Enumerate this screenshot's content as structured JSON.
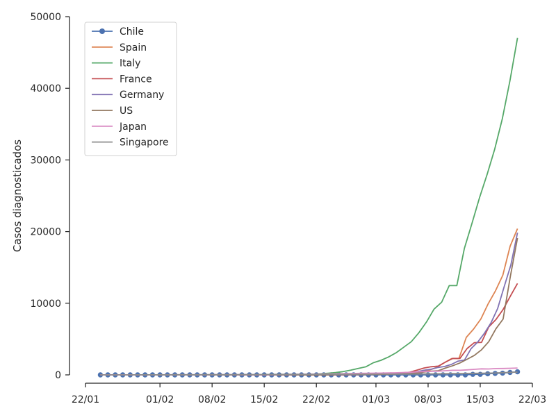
{
  "chart_data": {
    "type": "line",
    "title": "",
    "xlabel": "",
    "ylabel": "Casos diagnosticados",
    "xlim": [
      "2020-01-22",
      "2020-03-22"
    ],
    "ylim": [
      0,
      50000
    ],
    "x_ticks": [
      "2020-01-22",
      "2020-02-01",
      "2020-02-08",
      "2020-02-15",
      "2020-02-22",
      "2020-03-01",
      "2020-03-08",
      "2020-03-15",
      "2020-03-22"
    ],
    "x_tick_labels": [
      "22/01",
      "01/02",
      "08/02",
      "15/02",
      "22/02",
      "01/03",
      "08/03",
      "15/03",
      "22/03"
    ],
    "y_ticks": [
      0,
      10000,
      20000,
      30000,
      40000,
      50000
    ],
    "y_tick_labels": [
      "0",
      "10000",
      "20000",
      "30000",
      "40000",
      "50000"
    ],
    "grid": false,
    "legend": "top-left",
    "x_start": "2020-01-24",
    "x_end": "2020-03-20",
    "series": [
      {
        "name": "Chile",
        "color": "#4c72b0",
        "marker": "circle",
        "values": [
          0,
          0,
          0,
          0,
          0,
          0,
          0,
          0,
          0,
          0,
          0,
          0,
          0,
          0,
          0,
          0,
          0,
          0,
          0,
          0,
          0,
          0,
          0,
          0,
          0,
          0,
          0,
          0,
          0,
          0,
          0,
          0,
          0,
          0,
          0,
          0,
          0,
          0,
          0,
          0,
          0,
          0,
          0,
          0,
          0,
          0,
          0,
          0,
          0,
          0,
          75,
          75,
          155,
          201,
          238,
          342,
          434
        ]
      },
      {
        "name": "Spain",
        "color": "#dd8452",
        "values": [
          0,
          0,
          0,
          0,
          0,
          0,
          0,
          0,
          1,
          1,
          1,
          1,
          1,
          1,
          1,
          1,
          2,
          2,
          2,
          2,
          2,
          2,
          2,
          2,
          2,
          2,
          2,
          2,
          2,
          2,
          2,
          2,
          2,
          6,
          13,
          15,
          32,
          45,
          84,
          120,
          165,
          222,
          259,
          400,
          500,
          673,
          1073,
          1695,
          2277,
          2277,
          5232,
          6391,
          7798,
          9942,
          11748,
          13910,
          17963,
          20410
        ]
      },
      {
        "name": "Italy",
        "color": "#55a868",
        "values": [
          0,
          0,
          0,
          0,
          0,
          0,
          0,
          0,
          2,
          2,
          2,
          2,
          2,
          3,
          3,
          3,
          3,
          3,
          3,
          3,
          3,
          3,
          3,
          3,
          3,
          3,
          3,
          20,
          62,
          155,
          229,
          322,
          453,
          655,
          888,
          1128,
          1694,
          2036,
          2502,
          3089,
          3858,
          4636,
          5883,
          7375,
          9172,
          10149,
          12462,
          12462,
          17660,
          21157,
          24747,
          27980,
          31506,
          35713,
          41035,
          47021
        ]
      },
      {
        "name": "France",
        "color": "#c44e52",
        "values": [
          0,
          0,
          2,
          3,
          3,
          3,
          4,
          5,
          5,
          5,
          6,
          6,
          6,
          6,
          6,
          6,
          6,
          11,
          11,
          11,
          11,
          11,
          11,
          11,
          12,
          12,
          12,
          12,
          12,
          12,
          12,
          12,
          12,
          12,
          12,
          18,
          38,
          57,
          100,
          130,
          191,
          204,
          288,
          380,
          656,
          959,
          1136,
          1219,
          1794,
          2293,
          2293,
          3681,
          4496,
          4532,
          6683,
          7715,
          9124,
          10970,
          12758
        ]
      },
      {
        "name": "Germany",
        "color": "#8172b3",
        "values": [
          0,
          0,
          0,
          0,
          0,
          1,
          4,
          4,
          4,
          5,
          8,
          10,
          12,
          12,
          12,
          12,
          13,
          13,
          14,
          14,
          16,
          16,
          16,
          16,
          16,
          16,
          16,
          16,
          16,
          16,
          16,
          16,
          16,
          16,
          16,
          16,
          16,
          16,
          16,
          17,
          27,
          46,
          48,
          79,
          130,
          159,
          196,
          262,
          482,
          670,
          799,
          1040,
          1176,
          1457,
          1908,
          2078,
          3675,
          4585,
          5795,
          7272,
          9257,
          12327,
          15320,
          19848
        ]
      },
      {
        "name": "US",
        "color": "#937860",
        "values": [
          1,
          1,
          2,
          2,
          5,
          5,
          5,
          5,
          5,
          7,
          8,
          8,
          11,
          11,
          11,
          11,
          11,
          11,
          11,
          11,
          12,
          12,
          13,
          13,
          13,
          13,
          13,
          13,
          13,
          13,
          15,
          15,
          15,
          51,
          51,
          57,
          58,
          60,
          68,
          74,
          98,
          118,
          149,
          217,
          262,
          402,
          518,
          583,
          959,
          1281,
          1663,
          2179,
          2727,
          3499,
          4632,
          6421,
          7786,
          13680,
          19101
        ]
      },
      {
        "name": "Japan",
        "color": "#da8bc3",
        "values": [
          2,
          2,
          2,
          2,
          4,
          4,
          7,
          7,
          11,
          15,
          20,
          20,
          20,
          22,
          22,
          22,
          25,
          25,
          26,
          26,
          26,
          28,
          28,
          29,
          43,
          59,
          66,
          74,
          84,
          94,
          105,
          122,
          147,
          159,
          170,
          189,
          214,
          228,
          241,
          256,
          274,
          293,
          331,
          360,
          420,
          461,
          502,
          511,
          581,
          639,
          639,
          701,
          773,
          839,
          825,
          878,
          889,
          924,
          963
        ]
      },
      {
        "name": "Singapore",
        "color": "#8c8c8c",
        "values": [
          0,
          1,
          3,
          3,
          4,
          5,
          7,
          7,
          10,
          13,
          16,
          18,
          18,
          24,
          28,
          28,
          30,
          33,
          40,
          45,
          47,
          50,
          58,
          67,
          72,
          75,
          77,
          81,
          84,
          84,
          85,
          85,
          89,
          89,
          91,
          93,
          96,
          106,
          108,
          110,
          110,
          117,
          130,
          138,
          150,
          150,
          160,
          178,
          178,
          200,
          212,
          226,
          243,
          266,
          313,
          345,
          385
        ]
      }
    ]
  }
}
